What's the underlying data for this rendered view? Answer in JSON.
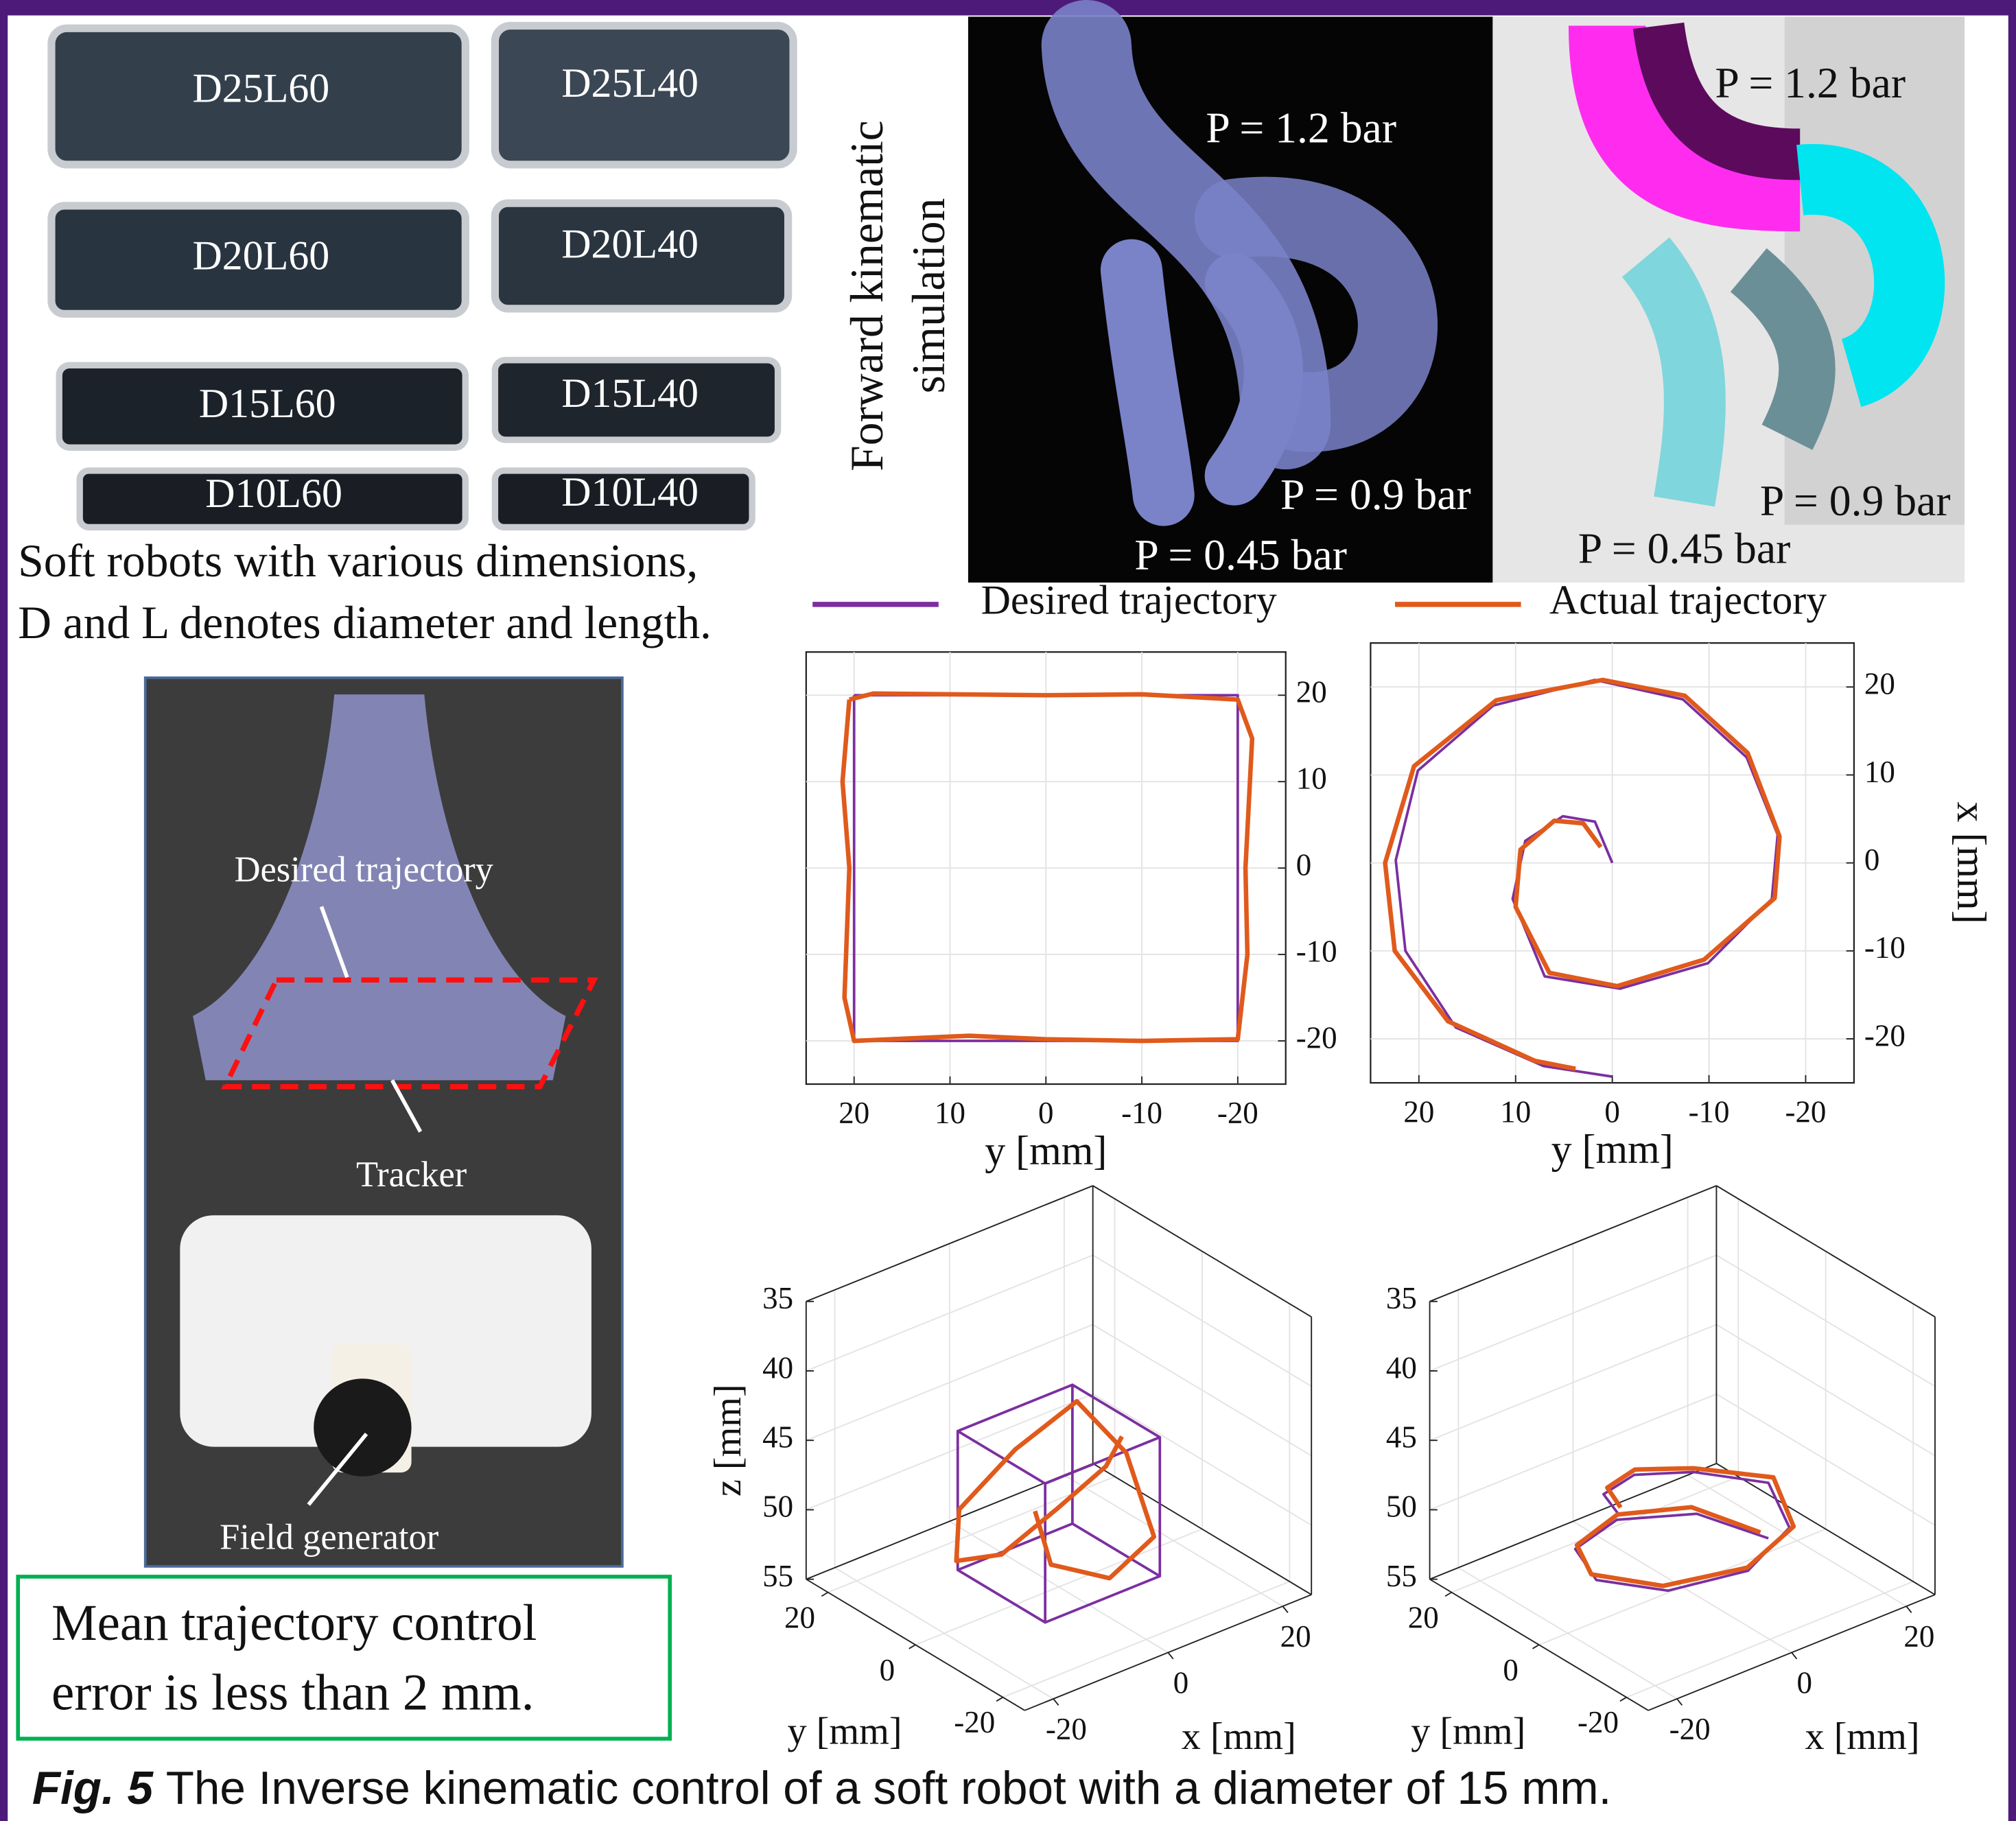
{
  "robots": {
    "labels": [
      "D25L60",
      "D25L40",
      "D20L60",
      "D20L40",
      "D15L60",
      "D15L40",
      "D10L60",
      "D10L40"
    ],
    "caption": [
      "Soft robots with various dimensions,",
      "D and L denotes diameter and length."
    ]
  },
  "simulation": {
    "side_label": [
      "Forward kinematic",
      "simulation"
    ],
    "photo_labels": [
      "P = 1.2 bar",
      "P = 0.9 bar",
      "P = 0.45 bar"
    ],
    "render_labels": [
      "P = 1.2 bar",
      "P = 0.9 bar",
      "P = 0.45 bar"
    ]
  },
  "setup": {
    "labels": [
      "Desired trajectory",
      "Tracker",
      "Field generator"
    ]
  },
  "note": [
    "Mean trajectory control",
    "error is less than 2 mm."
  ],
  "caption": {
    "label": "Fig. 5",
    "text": "The Inverse kinematic control of a soft robot with a diameter of 15 mm."
  },
  "chart_data": [
    {
      "type": "line",
      "xlabel": "y [mm]",
      "xlim": [
        25,
        -25
      ],
      "xticks": [
        20,
        10,
        0,
        -10,
        -20
      ],
      "ylim": [
        -25,
        25
      ],
      "yticks": [
        20,
        10,
        0,
        -10,
        -20
      ],
      "grid": true,
      "series": [
        {
          "name": "Desired trajectory",
          "color": "#7b2fa0",
          "x": [
            20,
            -20,
            -20,
            20,
            20
          ],
          "values": [
            20,
            20,
            -20,
            -20,
            20
          ]
        },
        {
          "name": "Actual trajectory",
          "color": "#e05a1c",
          "x": [
            20.5,
            18,
            0,
            -10,
            -20,
            -21.5,
            -20.8,
            -21,
            -20,
            -10,
            0,
            8,
            20,
            21,
            20.5,
            21.2,
            20.5
          ],
          "values": [
            19.5,
            20.2,
            20,
            20.1,
            19.5,
            15,
            0,
            -10,
            -19.8,
            -20,
            -19.8,
            -19.4,
            -20,
            -15,
            0,
            10,
            19.5
          ]
        }
      ]
    },
    {
      "type": "line",
      "xlabel": "y [mm]",
      "ylabel": "x [mm]",
      "xlim": [
        25,
        -25
      ],
      "xticks": [
        20,
        10,
        0,
        -10,
        -20
      ],
      "ylim": [
        -25,
        25
      ],
      "yticks": [
        20,
        10,
        0,
        -10,
        -20
      ],
      "grid": true,
      "series": [
        {
          "name": "Desired trajectory",
          "color": "#7b2fa0",
          "x": [
            0,
            1.8,
            5.1,
            9,
            10.3,
            7,
            -0.8,
            -9.9,
            -16.5,
            -17.1,
            -13.9,
            -7.3,
            1.8,
            12.3,
            20.1,
            22.4,
            21.4,
            16.2,
            7.1,
            0
          ],
          "values": [
            0,
            4.7,
            5.3,
            2.5,
            -4.1,
            -12.9,
            -14.3,
            -11.4,
            -4.1,
            3.2,
            12,
            18.6,
            20.8,
            17.9,
            10.5,
            0.3,
            -10,
            -18.7,
            -23.1,
            -24.3
          ]
        },
        {
          "name": "Actual trajectory",
          "color": "#e05a1c",
          "x": [
            1.2,
            3,
            6,
            9.5,
            10,
            6.5,
            -0.5,
            -9.5,
            -16.8,
            -17.3,
            -14,
            -7.5,
            1,
            12,
            20.5,
            23.5,
            22.5,
            17,
            8,
            3.8
          ],
          "values": [
            1.8,
            4.5,
            4.8,
            1.5,
            -5,
            -12.5,
            -14,
            -11,
            -4,
            3,
            12.5,
            19,
            20.8,
            18.5,
            11,
            0,
            -10,
            -18,
            -22.5,
            -23.4
          ]
        }
      ]
    },
    {
      "type": "line3d",
      "xlabel": "x [mm]",
      "ylabel": "y [mm]",
      "zlabel": "z [mm]",
      "xlim": [
        -25,
        25
      ],
      "xticks": [
        -20,
        0,
        20
      ],
      "ylim": [
        -25,
        25
      ],
      "yticks": [
        20,
        0,
        -20
      ],
      "zlim": [
        35,
        55
      ],
      "zticks": [
        35,
        40,
        45,
        50,
        55
      ],
      "zreverse": true,
      "grid": true,
      "series": [
        {
          "name": "Desired trajectory",
          "color": "#7b2fa0",
          "x": [
            -10,
            10,
            10,
            -10,
            -10,
            -10,
            10,
            10,
            10,
            10,
            10,
            10,
            -10,
            -10,
            -10,
            -10
          ],
          "y": [
            -10,
            -10,
            10,
            10,
            -10,
            -10,
            -10,
            -10,
            -10,
            10,
            10,
            10,
            10,
            10,
            10,
            -10
          ],
          "z": [
            44,
            44,
            44,
            44,
            44,
            54,
            54,
            44,
            54,
            54,
            44,
            54,
            54,
            44,
            54,
            54
          ]
        },
        {
          "name": "Actual trajectory",
          "color": "#e05a1c",
          "x": [
            -11,
            -9,
            2,
            9,
            11,
            10,
            0,
            -9,
            -11,
            -10,
            -1,
            9,
            11
          ],
          "y": [
            -9,
            -10,
            -9,
            -10,
            -1,
            9,
            10,
            11,
            9,
            0,
            -1,
            1,
            0
          ],
          "z": [
            46,
            50,
            53,
            51,
            47,
            45,
            47,
            50,
            53,
            51,
            49,
            48,
            46
          ]
        }
      ]
    },
    {
      "type": "line3d",
      "xlabel": "x [mm]",
      "ylabel": "y [mm]",
      "xlim": [
        -25,
        25
      ],
      "xticks": [
        -20,
        0,
        20
      ],
      "ylim": [
        -25,
        25
      ],
      "yticks": [
        20,
        0,
        -20
      ],
      "zlim": [
        35,
        55
      ],
      "zticks": [
        35,
        40,
        45,
        50,
        55
      ],
      "zreverse": true,
      "grid": true,
      "series": [
        {
          "name": "Desired trajectory",
          "color": "#7b2fa0",
          "x": [
            15,
            10.6,
            0,
            -10.6,
            -15,
            -10.6,
            0,
            10.6,
            15,
            7.8,
            0,
            -7.8,
            -11
          ],
          "y": [
            0,
            10.6,
            15,
            10.6,
            0,
            -10.6,
            -15,
            -10.6,
            0,
            7.8,
            11,
            7.8,
            0
          ],
          "z": [
            54,
            53.5,
            53,
            52.5,
            52,
            51.5,
            51,
            50.5,
            50,
            49.5,
            49,
            48.5,
            48
          ]
        },
        {
          "name": "Actual trajectory",
          "color": "#e05a1c",
          "x": [
            14,
            10,
            0.5,
            -10,
            -15.5,
            -11,
            -0.5,
            11,
            15.5,
            8,
            0.5,
            -7,
            -10
          ],
          "y": [
            0.5,
            11,
            15.5,
            11,
            0.5,
            -10,
            -15.5,
            -11,
            -0.5,
            8,
            11.5,
            8,
            1
          ],
          "z": [
            53.5,
            53,
            52.8,
            52.4,
            51.6,
            51.2,
            50.6,
            50.4,
            49.6,
            49.3,
            48.8,
            48.2,
            47.8
          ]
        }
      ]
    }
  ]
}
